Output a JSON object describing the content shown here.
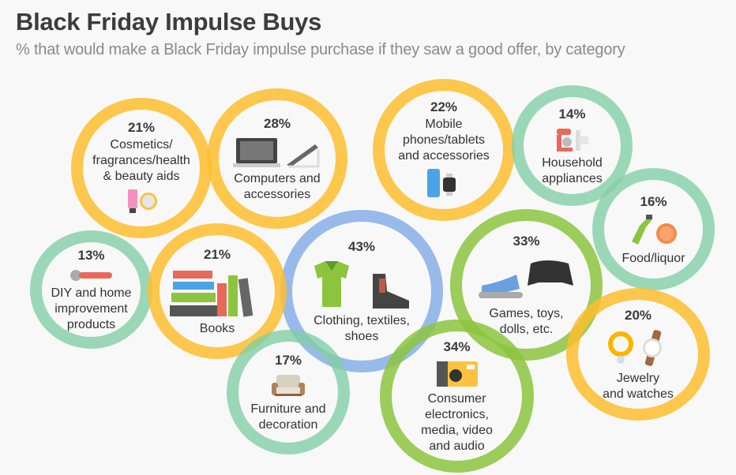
{
  "header": {
    "title": "Black Friday Impulse Buys",
    "subtitle": "% that would make a Black Friday impulse purchase if they saw a good offer, by category"
  },
  "chart_data": {
    "type": "bubble",
    "title": "Black Friday Impulse Buys",
    "subtitle": "% that would make a Black Friday impulse purchase if they saw a good offer, by category",
    "unit": "%",
    "items": [
      {
        "label": "Cosmetics/\nfragrances/health\n& beauty aids",
        "value": 21,
        "value_label": "21%",
        "color": "#fdbe2e",
        "icon": "cosmetics-icon"
      },
      {
        "label": "Computers and\naccessories",
        "value": 28,
        "value_label": "28%",
        "color": "#fdbe2e",
        "icon": "laptop-icon"
      },
      {
        "label": "Mobile\nphones/tablets\nand accessories",
        "value": 22,
        "value_label": "22%",
        "color": "#fdbe2e",
        "icon": "phone-watch-icon"
      },
      {
        "label": "Household\nappliances",
        "value": 14,
        "value_label": "14%",
        "color": "#82cea5",
        "icon": "mixer-icon"
      },
      {
        "label": "Food/liquor",
        "value": 16,
        "value_label": "16%",
        "color": "#82cea5",
        "icon": "bottle-pizza-icon"
      },
      {
        "label": "DIY and home\nimprovement\nproducts",
        "value": 13,
        "value_label": "13%",
        "color": "#82cea5",
        "icon": "wrench-icon"
      },
      {
        "label": "Books",
        "value": 21,
        "value_label": "21%",
        "color": "#fdbe2e",
        "icon": "books-icon"
      },
      {
        "label": "Clothing, textiles,\nshoes",
        "value": 43,
        "value_label": "43%",
        "color": "#80aae6",
        "icon": "shirt-boot-icon"
      },
      {
        "label": "Games, toys,\ndolls, etc.",
        "value": 33,
        "value_label": "33%",
        "color": "#8cc43e",
        "icon": "toy-gamepad-icon"
      },
      {
        "label": "Furniture and\ndecoration",
        "value": 17,
        "value_label": "17%",
        "color": "#82cea5",
        "icon": "armchair-icon"
      },
      {
        "label": "Consumer\nelectronics,\nmedia, video\nand audio",
        "value": 34,
        "value_label": "34%",
        "color": "#8cc43e",
        "icon": "camera-icon"
      },
      {
        "label": "Jewelry\nand watches",
        "value": 20,
        "value_label": "20%",
        "color": "#fdbe2e",
        "icon": "jewelry-watch-icon"
      }
    ]
  }
}
